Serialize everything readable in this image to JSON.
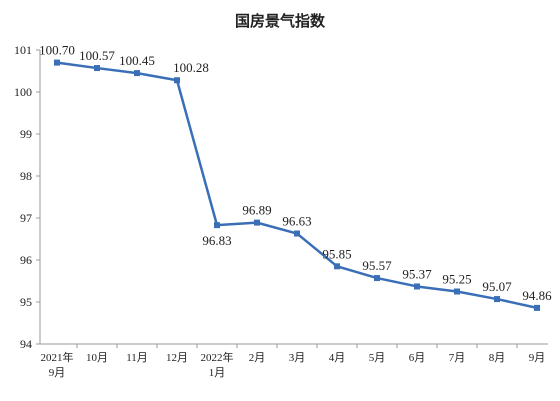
{
  "chart_data": {
    "type": "line",
    "title": "国房景气指数",
    "xlabel": "",
    "ylabel": "",
    "categories": [
      [
        "2021年",
        "9月"
      ],
      [
        "10月"
      ],
      [
        "11月"
      ],
      [
        "12月"
      ],
      [
        "2022年",
        "1月"
      ],
      [
        "2月"
      ],
      [
        "3月"
      ],
      [
        "4月"
      ],
      [
        "5月"
      ],
      [
        "6月"
      ],
      [
        "7月"
      ],
      [
        "8月"
      ],
      [
        "9月"
      ]
    ],
    "series": [
      {
        "values": [
          100.7,
          100.57,
          100.45,
          100.28,
          96.83,
          96.89,
          96.63,
          95.85,
          95.57,
          95.37,
          95.25,
          95.07,
          94.86
        ],
        "labels": [
          "100.70",
          "100.57",
          "100.45",
          "100.28",
          "96.83",
          "96.89",
          "96.63",
          "95.85",
          "95.57",
          "95.37",
          "95.25",
          "95.07",
          "94.86"
        ]
      }
    ],
    "ylim": [
      94,
      101
    ],
    "yticks": [
      "94",
      "95",
      "96",
      "97",
      "98",
      "99",
      "100",
      "101"
    ],
    "grid": false,
    "legend": "none",
    "line_color": "#3a6fb7",
    "axis_color": "#999999"
  }
}
